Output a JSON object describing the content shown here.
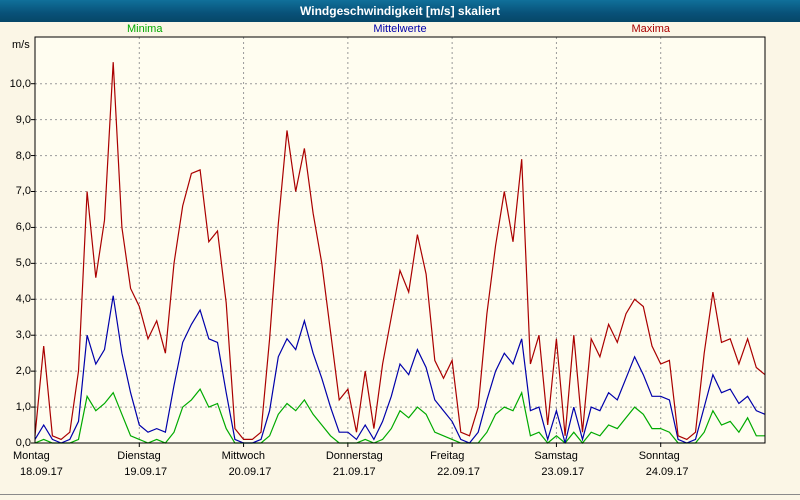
{
  "window": {
    "title": "Windgeschwindigkeit [m/s] skaliert"
  },
  "legend": {
    "items": [
      {
        "label": "Minima",
        "color": "#00aa00"
      },
      {
        "label": "Mittelwerte",
        "color": "#0000aa"
      },
      {
        "label": "Maxima",
        "color": "#aa0000"
      }
    ]
  },
  "chart_data": {
    "type": "line",
    "title": "Windgeschwindigkeit [m/s] skaliert",
    "ylabel": "m/s",
    "xlabel": "",
    "ylim": [
      0,
      11.3
    ],
    "xlim_hours": [
      0,
      168
    ],
    "x_step_hours": 2,
    "grid": "dashed",
    "legend_position": "top",
    "ytick_values": [
      0,
      1,
      2,
      3,
      4,
      5,
      6,
      7,
      8,
      9,
      10
    ],
    "ytick_labels": [
      "0,0",
      "1,0",
      "2,0",
      "3,0",
      "4,0",
      "5,0",
      "6,0",
      "7,0",
      "8,0",
      "9,0",
      "10,0"
    ],
    "days": [
      {
        "name": "Montag",
        "date": "18.09.17"
      },
      {
        "name": "Dienstag",
        "date": "19.09.17"
      },
      {
        "name": "Mittwoch",
        "date": "20.09.17"
      },
      {
        "name": "Donnerstag",
        "date": "21.09.17"
      },
      {
        "name": "Freitag",
        "date": "22.09.17"
      },
      {
        "name": "Samstag",
        "date": "23.09.17"
      },
      {
        "name": "Sonntag",
        "date": "24.09.17"
      }
    ],
    "series": [
      {
        "name": "Minima",
        "color": "#00aa00",
        "values": [
          0.0,
          0.1,
          0.0,
          0.0,
          0.0,
          0.1,
          1.3,
          0.9,
          1.1,
          1.4,
          0.8,
          0.2,
          0.1,
          0.0,
          0.1,
          0.0,
          0.3,
          1.0,
          1.2,
          1.5,
          1.0,
          1.1,
          0.4,
          0.0,
          0.0,
          0.0,
          0.0,
          0.2,
          0.8,
          1.1,
          0.9,
          1.2,
          0.8,
          0.5,
          0.2,
          0.0,
          0.0,
          0.0,
          0.1,
          0.0,
          0.1,
          0.4,
          0.9,
          0.7,
          1.0,
          0.8,
          0.3,
          0.2,
          0.1,
          0.0,
          0.0,
          0.0,
          0.3,
          0.8,
          1.0,
          0.9,
          1.4,
          0.2,
          0.3,
          0.0,
          0.2,
          0.0,
          0.3,
          0.0,
          0.3,
          0.2,
          0.5,
          0.4,
          0.7,
          1.0,
          0.8,
          0.4,
          0.4,
          0.3,
          0.0,
          0.0,
          0.0,
          0.3,
          0.9,
          0.5,
          0.6,
          0.3,
          0.7,
          0.2,
          0.2
        ]
      },
      {
        "name": "Mittelwerte",
        "color": "#0000aa",
        "values": [
          0.1,
          0.5,
          0.1,
          0.0,
          0.1,
          0.6,
          3.0,
          2.2,
          2.6,
          4.1,
          2.5,
          1.4,
          0.5,
          0.3,
          0.4,
          0.3,
          1.6,
          2.8,
          3.3,
          3.7,
          2.9,
          2.8,
          1.4,
          0.1,
          0.0,
          0.0,
          0.1,
          0.9,
          2.4,
          2.9,
          2.6,
          3.4,
          2.5,
          1.8,
          1.0,
          0.3,
          0.3,
          0.1,
          0.5,
          0.1,
          0.6,
          1.3,
          2.2,
          1.9,
          2.6,
          2.1,
          1.2,
          0.9,
          0.6,
          0.1,
          0.0,
          0.3,
          1.2,
          2.0,
          2.5,
          2.2,
          2.9,
          0.9,
          1.0,
          0.1,
          0.9,
          0.0,
          1.0,
          0.1,
          1.0,
          0.9,
          1.4,
          1.2,
          1.8,
          2.4,
          1.9,
          1.3,
          1.3,
          1.2,
          0.1,
          0.0,
          0.1,
          1.0,
          1.9,
          1.4,
          1.5,
          1.1,
          1.3,
          0.9,
          0.8
        ]
      },
      {
        "name": "Maxima",
        "color": "#aa0000",
        "values": [
          0.2,
          2.7,
          0.2,
          0.1,
          0.3,
          2.0,
          7.0,
          4.6,
          6.2,
          10.6,
          6.0,
          4.3,
          3.8,
          2.9,
          3.4,
          2.5,
          5.0,
          6.6,
          7.5,
          7.6,
          5.6,
          5.9,
          3.9,
          0.4,
          0.1,
          0.1,
          0.3,
          2.9,
          6.1,
          8.7,
          7.0,
          8.2,
          6.4,
          5.0,
          3.1,
          1.2,
          1.5,
          0.3,
          2.0,
          0.4,
          2.2,
          3.5,
          4.8,
          4.2,
          5.8,
          4.7,
          2.3,
          1.8,
          2.3,
          0.3,
          0.2,
          1.0,
          3.6,
          5.5,
          7.0,
          5.6,
          7.9,
          2.2,
          3.0,
          0.5,
          2.9,
          0.2,
          3.0,
          0.3,
          2.9,
          2.4,
          3.3,
          2.8,
          3.6,
          4.0,
          3.8,
          2.7,
          2.2,
          2.3,
          0.2,
          0.1,
          0.3,
          2.5,
          4.2,
          2.8,
          2.9,
          2.2,
          2.9,
          2.1,
          1.9
        ]
      }
    ]
  }
}
